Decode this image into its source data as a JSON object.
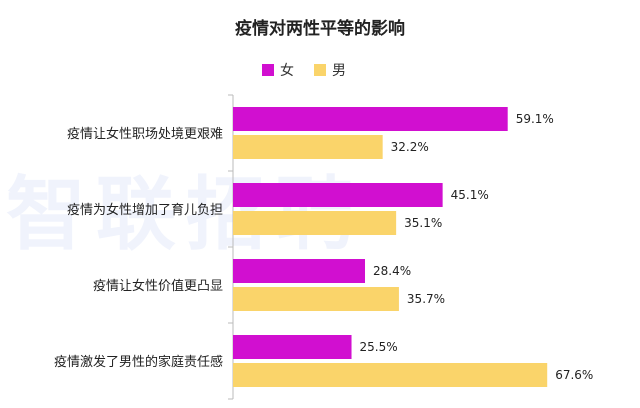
{
  "chart_data": {
    "type": "bar",
    "orientation": "horizontal",
    "title": "疫情对两性平等的影响",
    "watermark": "智联招聘",
    "categories": [
      "疫情让女性职场处境更艰难",
      "疫情为女性增加了育儿负担",
      "疫情让女性价值更凸显",
      "疫情激发了男性的家庭责任感"
    ],
    "series": [
      {
        "name": "女",
        "color": "#d10fd0",
        "values": [
          59.1,
          45.1,
          28.4,
          25.5
        ],
        "labels": [
          "59.1%",
          "45.1%",
          "28.4%",
          "25.5%"
        ]
      },
      {
        "name": "男",
        "color": "#fad46a",
        "values": [
          32.2,
          35.1,
          35.7,
          67.6
        ],
        "labels": [
          "32.2%",
          "35.1%",
          "35.7%",
          "67.6%"
        ]
      }
    ],
    "xlim": [
      0,
      70
    ],
    "legend_position": "top-center",
    "grid": false
  }
}
